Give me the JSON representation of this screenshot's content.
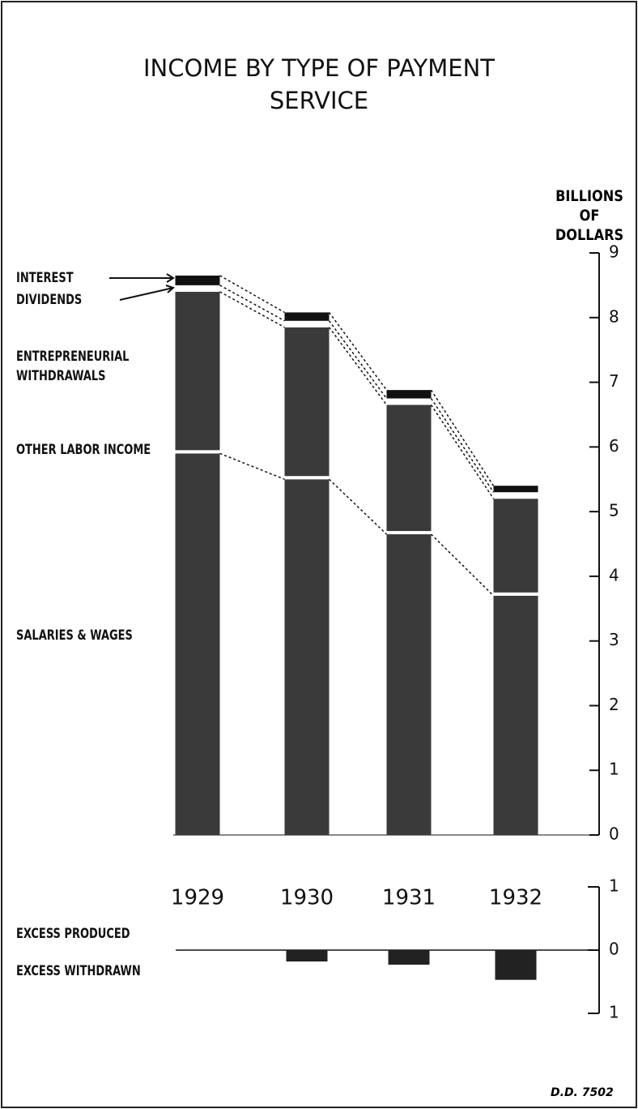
{
  "chart_data": [
    {
      "type": "stacked_bar",
      "title": "INCOME BY TYPE OF PAYMENT SERVICE",
      "y_label": "BILLIONS OF DOLLARS",
      "categories": [
        "1929",
        "1930",
        "1931",
        "1932"
      ],
      "series": [
        {
          "name": "SALARIES & WAGES",
          "color": "#3a3a3a",
          "values": [
            5.9,
            5.5,
            4.65,
            3.7
          ]
        },
        {
          "name": "OTHER LABOR INCOME",
          "color": "#ffffff",
          "values": [
            0.05,
            0.05,
            0.05,
            0.05
          ]
        },
        {
          "name": "ENTREPRENEURIAL WITHDRAWALS",
          "color": "#3a3a3a",
          "values": [
            2.45,
            2.3,
            1.95,
            1.45
          ]
        },
        {
          "name": "DIVIDENDS",
          "color": "#ffffff",
          "values": [
            0.1,
            0.1,
            0.1,
            0.1
          ]
        },
        {
          "name": "INTEREST",
          "color": "#111111",
          "values": [
            0.15,
            0.13,
            0.13,
            0.1
          ]
        }
      ],
      "ylim": [
        0,
        9
      ],
      "yticks": [
        0,
        1,
        2,
        3,
        4,
        5,
        6,
        7,
        8,
        9
      ]
    },
    {
      "type": "bar",
      "categories": [
        null,
        null,
        null,
        null
      ],
      "values": [
        0,
        -0.18,
        -0.23,
        -0.47
      ],
      "color": "#222222",
      "annotations": [
        "EXCESS PRODUCED",
        "EXCESS WITHDRAWN"
      ],
      "ylim": [
        -1,
        1
      ],
      "yticks": [
        {
          "value": -1,
          "label": "1"
        },
        0,
        1
      ]
    }
  ],
  "footer": "D.D. 7502"
}
